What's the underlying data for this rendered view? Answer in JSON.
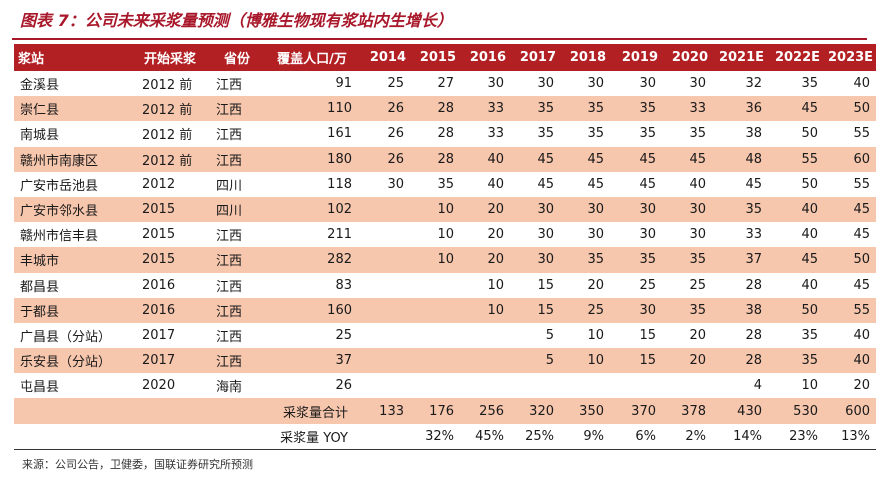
{
  "title": "图表 7：公司未来采浆量预测（博雅生物现有浆站内生增长）",
  "headers": [
    "浆站",
    "开始采浆",
    "省份",
    "覆盖人口/万",
    "2014",
    "2015",
    "2016",
    "2017",
    "2018",
    "2019",
    "2020",
    "2021E",
    "2022E",
    "2023E"
  ],
  "rows": [
    [
      "金溪县",
      "2012 前",
      "江西",
      "91",
      "25",
      "27",
      "30",
      "30",
      "30",
      "30",
      "30",
      "32",
      "35",
      "40"
    ],
    [
      "崇仁县",
      "2012 前",
      "江西",
      "110",
      "26",
      "28",
      "33",
      "35",
      "35",
      "35",
      "33",
      "36",
      "45",
      "50"
    ],
    [
      "南城县",
      "2012 前",
      "江西",
      "161",
      "26",
      "28",
      "33",
      "35",
      "35",
      "35",
      "35",
      "38",
      "50",
      "55"
    ],
    [
      "赣州市南康区",
      "2012 前",
      "江西",
      "180",
      "26",
      "28",
      "40",
      "45",
      "45",
      "45",
      "45",
      "48",
      "55",
      "60"
    ],
    [
      "广安市岳池县",
      "2012",
      "四川",
      "118",
      "30",
      "35",
      "40",
      "45",
      "45",
      "45",
      "40",
      "45",
      "50",
      "55"
    ],
    [
      "广安市邻水县",
      "2015",
      "四川",
      "102",
      "",
      "10",
      "20",
      "30",
      "30",
      "30",
      "30",
      "35",
      "40",
      "45"
    ],
    [
      "赣州市信丰县",
      "2015",
      "江西",
      "211",
      "",
      "10",
      "20",
      "30",
      "30",
      "30",
      "30",
      "33",
      "40",
      "45"
    ],
    [
      "丰城市",
      "2015",
      "江西",
      "282",
      "",
      "10",
      "20",
      "30",
      "35",
      "35",
      "35",
      "37",
      "45",
      "50"
    ],
    [
      "都昌县",
      "2016",
      "江西",
      "83",
      "",
      "",
      "10",
      "15",
      "20",
      "25",
      "25",
      "28",
      "40",
      "45"
    ],
    [
      "于都县",
      "2016",
      "江西",
      "160",
      "",
      "",
      "10",
      "15",
      "25",
      "30",
      "35",
      "38",
      "50",
      "55"
    ],
    [
      "广昌县（分站）",
      "2017",
      "江西",
      "25",
      "",
      "",
      "",
      "5",
      "10",
      "15",
      "20",
      "28",
      "35",
      "40"
    ],
    [
      "乐安县（分站）",
      "2017",
      "江西",
      "37",
      "",
      "",
      "",
      "5",
      "10",
      "15",
      "20",
      "28",
      "35",
      "40"
    ],
    [
      "屯昌县",
      "2020",
      "海南",
      "26",
      "",
      "",
      "",
      "",
      "",
      "",
      "",
      "4",
      "10",
      "20"
    ]
  ],
  "total": {
    "label": "采浆量合计",
    "values": [
      "133",
      "176",
      "256",
      "320",
      "350",
      "370",
      "378",
      "430",
      "530",
      "600"
    ]
  },
  "yoy": {
    "label": "采浆量 YOY",
    "values": [
      "",
      "32%",
      "45%",
      "25%",
      "9%",
      "6%",
      "2%",
      "14%",
      "23%",
      "13%"
    ]
  },
  "source": "来源：公司公告，卫健委，国联证券研究所预测",
  "colors": {
    "accent": "#b32024",
    "shade": "#f6c6ad",
    "title": "#a8182a"
  }
}
